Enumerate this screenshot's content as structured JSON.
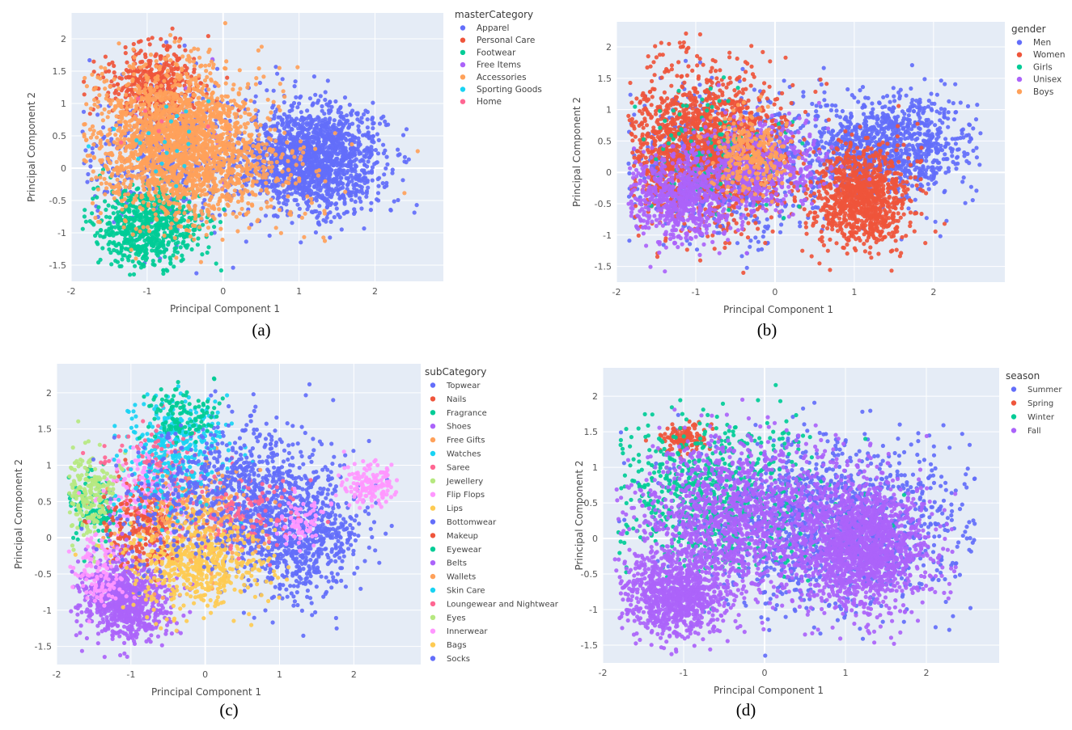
{
  "chart_data": [
    {
      "type": "scatter",
      "caption": "(a)",
      "xlabel": "Principal Component 1",
      "ylabel": "Principal Component 2",
      "xlim": [
        -2.0,
        2.9
      ],
      "ylim": [
        -1.75,
        2.4
      ],
      "xticks": [
        -2,
        -1,
        0,
        1,
        2
      ],
      "yticks": [
        -1.5,
        -1,
        -0.5,
        0,
        0.5,
        1,
        1.5,
        2
      ],
      "grid": true,
      "legend_title": "masterCategory",
      "legend_position": "right",
      "series": [
        {
          "name": "Apparel",
          "color": "#636efa",
          "clusters": [
            [
              1.2,
              0.15,
              0.45,
              0.4,
              1600
            ],
            [
              -0.7,
              0.2,
              0.6,
              0.6,
              500
            ]
          ]
        },
        {
          "name": "Personal Care",
          "color": "#ef553b",
          "clusters": [
            [
              -0.9,
              1.3,
              0.35,
              0.3,
              400
            ]
          ]
        },
        {
          "name": "Footwear",
          "color": "#00cc96",
          "clusters": [
            [
              -1.0,
              -0.9,
              0.35,
              0.3,
              700
            ]
          ]
        },
        {
          "name": "Free Items",
          "color": "#ab63fa",
          "clusters": [
            [
              -0.5,
              0.4,
              0.5,
              0.5,
              30
            ]
          ]
        },
        {
          "name": "Accessories",
          "color": "#ffa15a",
          "clusters": [
            [
              -0.6,
              0.4,
              0.55,
              0.55,
              2100
            ],
            [
              0.6,
              -0.2,
              0.6,
              0.4,
              100
            ]
          ]
        },
        {
          "name": "Sporting Goods",
          "color": "#19d3f3",
          "clusters": [
            [
              -0.9,
              0.5,
              0.4,
              0.4,
              20
            ]
          ]
        },
        {
          "name": "Home",
          "color": "#ff6692",
          "clusters": [
            [
              -0.8,
              0.6,
              0.3,
              0.3,
              6
            ]
          ]
        }
      ]
    },
    {
      "type": "scatter",
      "caption": "(b)",
      "xlabel": "Principal Component 1",
      "ylabel": "Principal Component 2",
      "xlim": [
        -2.0,
        2.9
      ],
      "ylim": [
        -1.75,
        2.4
      ],
      "xticks": [
        -2,
        -1,
        0,
        1,
        2
      ],
      "yticks": [
        -1.5,
        -1,
        -0.5,
        0,
        0.5,
        1,
        1.5,
        2
      ],
      "grid": true,
      "legend_title": "gender",
      "legend_position": "right",
      "series": [
        {
          "name": "Men",
          "color": "#636efa",
          "clusters": [
            [
              1.4,
              0.4,
              0.55,
              0.4,
              1100
            ],
            [
              -0.7,
              0.1,
              0.65,
              0.6,
              800
            ]
          ]
        },
        {
          "name": "Women",
          "color": "#ef553b",
          "clusters": [
            [
              -0.9,
              0.4,
              0.5,
              0.6,
              1600
            ],
            [
              1.1,
              -0.4,
              0.3,
              0.4,
              1000
            ]
          ]
        },
        {
          "name": "Girls",
          "color": "#00cc96",
          "clusters": [
            [
              -0.8,
              0.3,
              0.5,
              0.5,
              120
            ]
          ]
        },
        {
          "name": "Unisex",
          "color": "#ab63fa",
          "clusters": [
            [
              -1.2,
              -0.4,
              0.35,
              0.35,
              700
            ],
            [
              -0.2,
              0.1,
              0.4,
              0.35,
              500
            ]
          ]
        },
        {
          "name": "Boys",
          "color": "#ffa15a",
          "clusters": [
            [
              -0.3,
              0.3,
              0.25,
              0.3,
              250
            ]
          ]
        }
      ]
    },
    {
      "type": "scatter",
      "caption": "(c)",
      "xlabel": "Principal Component 1",
      "ylabel": "Principal Component 2",
      "xlim": [
        -2.0,
        2.9
      ],
      "ylim": [
        -1.75,
        2.4
      ],
      "xticks": [
        -2,
        -1,
        0,
        1,
        2
      ],
      "yticks": [
        -1.5,
        -1,
        -0.5,
        0,
        0.5,
        1,
        1.5,
        2
      ],
      "grid": true,
      "legend_title": "subCategory",
      "legend_position": "right",
      "series": [
        {
          "name": "Topwear",
          "color": "#636efa",
          "clusters": [
            [
              1.2,
              0.1,
              0.45,
              0.45,
              900
            ]
          ]
        },
        {
          "name": "Nails",
          "color": "#ef553b",
          "clusters": [
            [
              -0.8,
              0.3,
              0.3,
              0.3,
              90
            ]
          ]
        },
        {
          "name": "Fragrance",
          "color": "#00cc96",
          "clusters": [
            [
              -1.5,
              0.4,
              0.2,
              0.25,
              120
            ]
          ]
        },
        {
          "name": "Shoes",
          "color": "#ab63fa",
          "clusters": [
            [
              -1.05,
              -0.9,
              0.3,
              0.28,
              700
            ]
          ]
        },
        {
          "name": "Free Gifts",
          "color": "#ffa15a",
          "clusters": [
            [
              -0.4,
              0.2,
              0.5,
              0.5,
              80
            ]
          ]
        },
        {
          "name": "Watches",
          "color": "#19d3f3",
          "clusters": [
            [
              -0.4,
              1.3,
              0.35,
              0.35,
              300
            ]
          ]
        },
        {
          "name": "Saree",
          "color": "#ff6692",
          "clusters": [
            [
              -0.7,
              0.9,
              0.35,
              0.3,
              120
            ]
          ]
        },
        {
          "name": "Jewellery",
          "color": "#b6e880",
          "clusters": [
            [
              -1.6,
              0.6,
              0.15,
              0.3,
              150
            ]
          ]
        },
        {
          "name": "Flip Flops",
          "color": "#ff97ff",
          "clusters": [
            [
              2.2,
              0.75,
              0.2,
              0.15,
              150
            ],
            [
              -0.8,
              0.6,
              0.3,
              0.3,
              150
            ]
          ]
        },
        {
          "name": "Lips",
          "color": "#fecb52",
          "clusters": [
            [
              -0.2,
              -0.2,
              0.4,
              0.3,
              200
            ]
          ]
        },
        {
          "name": "Bottomwear",
          "color": "#636efa",
          "clusters": [
            [
              0.5,
              0.7,
              0.5,
              0.5,
              400
            ]
          ]
        },
        {
          "name": "Makeup",
          "color": "#ef553b",
          "clusters": [
            [
              -0.9,
              0.1,
              0.25,
              0.3,
              150
            ]
          ]
        },
        {
          "name": "Eyewear",
          "color": "#00cc96",
          "clusters": [
            [
              -0.3,
              1.7,
              0.25,
              0.2,
              120
            ]
          ]
        },
        {
          "name": "Belts",
          "color": "#ab63fa",
          "clusters": [
            [
              -1.2,
              -0.7,
              0.25,
              0.25,
              200
            ]
          ]
        },
        {
          "name": "Wallets",
          "color": "#ffa15a",
          "clusters": [
            [
              -0.1,
              0.3,
              0.35,
              0.3,
              180
            ]
          ]
        },
        {
          "name": "Skin Care",
          "color": "#19d3f3",
          "clusters": [
            [
              -0.6,
              0.8,
              0.35,
              0.3,
              80
            ]
          ]
        },
        {
          "name": "Loungewear and Nightwear",
          "color": "#ff6692",
          "clusters": [
            [
              0.5,
              0.3,
              0.4,
              0.3,
              120
            ]
          ]
        },
        {
          "name": "Eyes",
          "color": "#b6e880",
          "clusters": [
            [
              -1.5,
              0.8,
              0.2,
              0.2,
              60
            ]
          ]
        },
        {
          "name": "Innerwear",
          "color": "#ff97ff",
          "clusters": [
            [
              -1.4,
              -0.5,
              0.2,
              0.25,
              120
            ],
            [
              1.3,
              0.2,
              0.15,
              0.15,
              80
            ]
          ]
        },
        {
          "name": "Bags",
          "color": "#fecb52",
          "clusters": [
            [
              -0.1,
              -0.35,
              0.45,
              0.35,
              400
            ]
          ]
        },
        {
          "name": "Socks",
          "color": "#636efa",
          "clusters": [
            [
              -0.2,
              0.5,
              0.5,
              0.5,
              250
            ]
          ]
        }
      ]
    },
    {
      "type": "scatter",
      "caption": "(d)",
      "xlabel": "Principal Component 1",
      "ylabel": "Principal Component 2",
      "xlim": [
        -2.0,
        2.9
      ],
      "ylim": [
        -1.75,
        2.4
      ],
      "xticks": [
        -2,
        -1,
        0,
        1,
        2
      ],
      "yticks": [
        -1.5,
        -1,
        -0.5,
        0,
        0.5,
        1,
        1.5,
        2
      ],
      "grid": true,
      "legend_title": "season",
      "legend_position": "right",
      "series": [
        {
          "name": "Summer",
          "color": "#636efa",
          "clusters": [
            [
              0.8,
              0.2,
              0.9,
              0.6,
              1400
            ]
          ]
        },
        {
          "name": "Spring",
          "color": "#ef553b",
          "clusters": [
            [
              -1.0,
              1.4,
              0.15,
              0.12,
              120
            ]
          ]
        },
        {
          "name": "Winter",
          "color": "#00cc96",
          "clusters": [
            [
              -0.6,
              0.6,
              0.6,
              0.55,
              700
            ]
          ]
        },
        {
          "name": "Fall",
          "color": "#ab63fa",
          "clusters": [
            [
              1.2,
              -0.1,
              0.4,
              0.45,
              1700
            ],
            [
              -1.1,
              -0.8,
              0.3,
              0.3,
              900
            ],
            [
              -0.4,
              0.3,
              0.6,
              0.55,
              1300
            ]
          ]
        }
      ]
    }
  ]
}
